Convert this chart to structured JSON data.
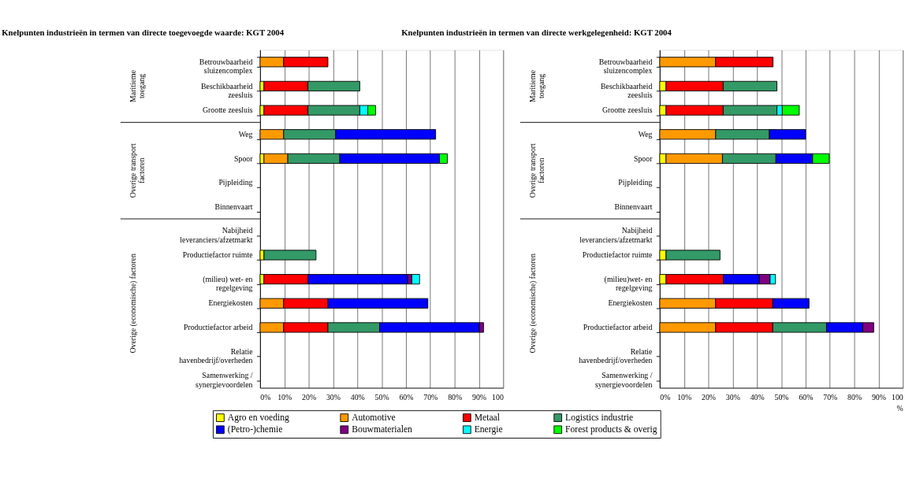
{
  "chart_data": [
    {
      "type": "bar",
      "orientation": "horizontal",
      "stacked": true,
      "title": "Knelpunten industrieën in termen van directe toegevoegde waarde: KGT 2004",
      "categories": [
        "Betrouwbaarheid\nsluizencomplex",
        "Beschikbaarheid\nzeesluis",
        "Grootte zeesluis",
        "Weg",
        "Spoor",
        "Pijpleiding",
        "Binnenvaart",
        "Nabijheid\nleveranciers/afzetmarkt",
        "Productiefactor ruimte",
        "(milieu) wet- en\nregelgeving",
        "Energiekosten",
        "Productiefactor arbeid",
        "Relatie\nhavenbedrijf/overheden",
        "Samenwerking /\nsynergievoordelen"
      ],
      "series": [
        {
          "name": "Agro en voeding",
          "color": "#ffff00",
          "values": [
            null,
            1.6,
            1.6,
            null,
            1.6,
            null,
            null,
            null,
            1.6,
            1.6,
            null,
            null,
            null,
            null
          ]
        },
        {
          "name": "Automotive",
          "color": "#ff9900",
          "values": [
            9.7,
            null,
            null,
            9.7,
            9.8,
            null,
            null,
            null,
            null,
            null,
            9.7,
            9.7,
            null,
            null
          ]
        },
        {
          "name": "Metaal",
          "color": "#ff0000",
          "values": [
            18.2,
            18.1,
            18.1,
            null,
            null,
            null,
            null,
            null,
            null,
            18.1,
            18.2,
            18.2,
            null,
            null
          ]
        },
        {
          "name": "Logistics industrie",
          "color": "#339966",
          "values": [
            null,
            21.3,
            21.3,
            21.4,
            21.4,
            null,
            null,
            null,
            21.4,
            null,
            null,
            21.3,
            null,
            null
          ]
        },
        {
          "name": "(Petro-)chemie",
          "color": "#0000ff",
          "values": [
            null,
            null,
            null,
            41.1,
            41,
            null,
            null,
            null,
            null,
            41,
            41.1,
            41,
            null,
            null
          ]
        },
        {
          "name": "Bouwmaterialen",
          "color": "#800080",
          "values": [
            null,
            null,
            null,
            null,
            null,
            null,
            null,
            null,
            null,
            1.7,
            null,
            1.7,
            null,
            null
          ]
        },
        {
          "name": "Energie",
          "color": "#00ffff",
          "values": [
            null,
            null,
            3.3,
            null,
            null,
            null,
            null,
            null,
            null,
            3.2,
            null,
            null,
            null,
            null
          ]
        },
        {
          "name": "Forest products & overig",
          "color": "#00ff00",
          "values": [
            null,
            null,
            3.2,
            null,
            3.2,
            null,
            null,
            null,
            null,
            null,
            null,
            null,
            null,
            null
          ]
        }
      ],
      "xlim": [
        0,
        100
      ],
      "xticks": [
        {
          "value": 0,
          "label": "0%"
        },
        {
          "value": 10,
          "label": "10%"
        },
        {
          "value": 20,
          "label": "20%"
        },
        {
          "value": 30,
          "label": "30%"
        },
        {
          "value": 40,
          "label": "40%"
        },
        {
          "value": 50,
          "label": "50%"
        },
        {
          "value": 60,
          "label": "60%"
        },
        {
          "value": 70,
          "label": "70%"
        },
        {
          "value": 80,
          "label": "80%"
        },
        {
          "value": 90,
          "label": "90%"
        },
        100
      ],
      "annotations": [
        "Maritieme\ntoegang",
        "Overige transport\nfactoren",
        "Overige (economische) factoren"
      ],
      "grid": "x",
      "legend": "bottom"
    },
    {
      "type": "bar",
      "orientation": "horizontal",
      "stacked": true,
      "title": "Knelpunten industrieën in termen van directe werkgelegenheid: KGT 2004",
      "xlabel": "%",
      "categories": [
        "Betrouwbaarheid\nsluizencomplex",
        "Beschikbaarheid\nzeesluis",
        "Grootte zeesluis",
        "Weg",
        "Spoor",
        "Pijpleiding",
        "Binnenvaart",
        "Nabijheid\nleveranciers/afzetmarkt",
        "Productiefactor ruimte",
        "(milieu)wet- en\nregelgeving",
        "Energiekosten",
        "Productiefactor arbeid",
        "Relatie\nhavenbedrijf/overheden",
        "Samenwerking /\nsynergievoordelen"
      ],
      "series": [
        {
          "color": "#ffff00",
          "values": [
            null,
            2.6,
            2.6,
            null,
            2.6,
            null,
            null,
            null,
            2.6,
            2.6,
            null,
            null,
            null,
            null
          ]
        },
        {
          "color": "#ff9900",
          "values": [
            23.0,
            null,
            null,
            23.0,
            23.2,
            null,
            null,
            null,
            null,
            null,
            23.0,
            23.0,
            null,
            null
          ]
        },
        {
          "color": "#ff0000",
          "values": [
            23.6,
            23.5,
            23.5,
            null,
            null,
            null,
            null,
            null,
            null,
            23.6,
            23.5,
            23.5,
            null,
            null
          ]
        },
        {
          "color": "#339966",
          "values": [
            null,
            22.1,
            22.1,
            22.1,
            22.0,
            null,
            null,
            null,
            22.2,
            null,
            null,
            22.1,
            null,
            null
          ]
        },
        {
          "color": "#0000ff",
          "values": [
            null,
            null,
            null,
            14.9,
            15.1,
            null,
            null,
            null,
            null,
            14.8,
            14.9,
            14.9,
            null,
            null
          ]
        },
        {
          "color": "#800080",
          "values": [
            null,
            null,
            null,
            null,
            null,
            null,
            null,
            null,
            null,
            4.4,
            null,
            4.5,
            null,
            null
          ]
        },
        {
          "color": "#00ffff",
          "values": [
            null,
            null,
            2.2,
            null,
            null,
            null,
            null,
            null,
            null,
            2.2,
            null,
            null,
            null,
            null
          ]
        },
        {
          "color": "#00ff00",
          "values": [
            null,
            null,
            7.0,
            null,
            6.8,
            null,
            null,
            null,
            null,
            null,
            null,
            null,
            null,
            null
          ]
        }
      ],
      "xlim": [
        0,
        100
      ],
      "xticks": [
        {
          "value": 0,
          "label": "0%"
        },
        {
          "value": 10,
          "label": "10%"
        },
        {
          "value": 20,
          "label": "20%"
        },
        {
          "value": 30,
          "label": "30%"
        },
        {
          "value": 40,
          "label": "40%"
        },
        {
          "value": 50,
          "label": "50%"
        },
        {
          "value": 60,
          "label": "60%"
        },
        {
          "value": 70,
          "label": "70%"
        },
        {
          "value": 80,
          "label": "80%"
        },
        {
          "value": 90,
          "label": "90%"
        },
        100
      ],
      "annotations": [
        "Maritieme\ntoegang",
        "Overige transport\nfactoren",
        "Overige (economische) factoren"
      ],
      "grid": "x"
    }
  ]
}
